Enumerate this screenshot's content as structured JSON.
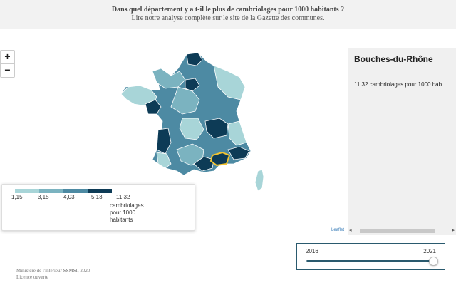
{
  "header": {
    "question": "Dans quel département y a t-il le plus de cambriolages pour 1000 habitants ?",
    "subtitle": "Lire notre analyse complète sur le site de la Gazette des communes."
  },
  "zoom": {
    "in_label": "+",
    "out_label": "−"
  },
  "legend": {
    "ticks": [
      "1,15",
      "3,15",
      "4,03",
      "5,13",
      "11,32"
    ],
    "unit": "cambriolages pour 1000 habitants",
    "colors": [
      "#a8d5d8",
      "#7bb3c0",
      "#4d8aa3",
      "#2a6485",
      "#0d3b56"
    ]
  },
  "info": {
    "department": "Bouches-du-Rhône",
    "value_text": "11,32 cambriolages pour 1000 hab"
  },
  "attribution": "Leaflet",
  "scroll": {
    "left": "◂",
    "right": "▸"
  },
  "slider": {
    "start": "2016",
    "end": "2021",
    "position": 1.0
  },
  "footer": {
    "source": "Ministère de l'intérieur SSMSI, 2020",
    "license": "Licence ouverte"
  },
  "highlight_color": "#f4c430"
}
